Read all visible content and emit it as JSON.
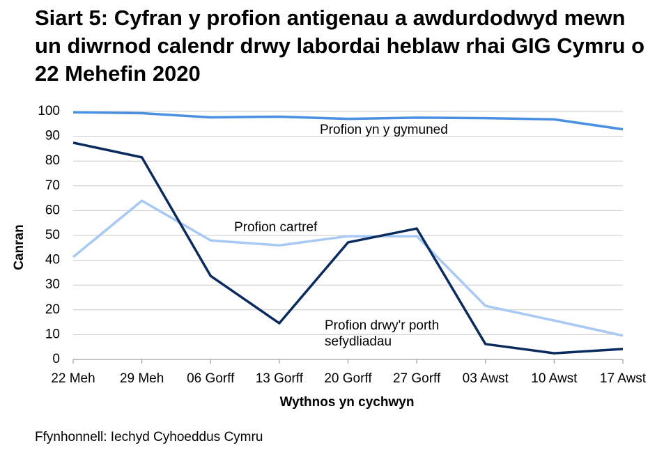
{
  "chart_data": {
    "type": "line",
    "title": "Siart 5: Cyfran y profion antigenau a awdurdodwyd mewn un diwrnod calendr drwy labordai heblaw rhai GIG Cymru o 22 Mehefin 2020",
    "y_label": "Canran",
    "x_label": "Wythnos yn cychwyn",
    "source": "Ffynhonnell: Iechyd Cyhoeddus Cymru",
    "categories": [
      "22 Meh",
      "29 Meh",
      "06 Gorff",
      "13 Gorff",
      "20 Gorff",
      "27 Gorff",
      "03 Awst",
      "10 Awst",
      "17 Awst"
    ],
    "series": [
      {
        "name": "Profion yn y gymuned",
        "color": "#4a90e2",
        "values": [
          99.7,
          99.3,
          97.6,
          97.9,
          97.0,
          97.5,
          97.3,
          96.8,
          92.8
        ]
      },
      {
        "name": "Profion cartref",
        "color": "#a9c9f5",
        "values": [
          41.3,
          64.0,
          48.0,
          46.0,
          49.7,
          49.7,
          21.6,
          15.7,
          9.6
        ]
      },
      {
        "name": "Profion drwy'r porth sefydliadau",
        "color": "#0b2b5e",
        "values": [
          87.4,
          81.5,
          33.7,
          14.6,
          47.2,
          52.8,
          6.2,
          2.5,
          4.2
        ]
      }
    ],
    "ylim": [
      0,
      100
    ],
    "yticks": [
      0,
      10,
      20,
      30,
      40,
      50,
      60,
      70,
      80,
      90,
      100
    ],
    "grid": true
  }
}
